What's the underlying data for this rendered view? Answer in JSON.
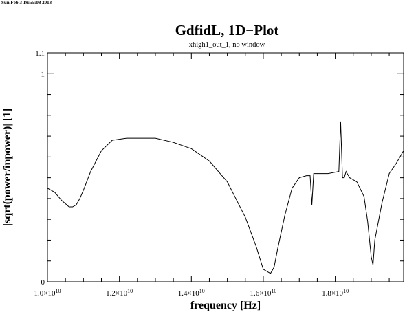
{
  "timestamp": "Sun Feb  3 19:55:08 2013",
  "chart_data": {
    "type": "line",
    "title": "GdfidL, 1D−Plot",
    "subtitle": "xhigh1_out_1, no window",
    "xlabel": "frequency [Hz]",
    "ylabel": "|sqrt(power/inpower)| [1]",
    "xlim": [
      10000000000.0,
      19900000000.0
    ],
    "ylim": [
      0,
      1.1
    ],
    "x_ticks": [
      {
        "value": 10000000000.0,
        "mantissa": "1.0",
        "exp": "10"
      },
      {
        "value": 12000000000.0,
        "mantissa": "1.2",
        "exp": "10"
      },
      {
        "value": 14000000000.0,
        "mantissa": "1.4",
        "exp": "10"
      },
      {
        "value": 16000000000.0,
        "mantissa": "1.6",
        "exp": "10"
      },
      {
        "value": 18000000000.0,
        "mantissa": "1.8",
        "exp": "10"
      }
    ],
    "y_ticks": [
      {
        "value": 0,
        "label": "0"
      },
      {
        "value": 1,
        "label": "1"
      },
      {
        "value": 1.1,
        "label": "1.1"
      }
    ],
    "x_unit": 10000000000.0,
    "x": [
      1.0,
      1.02,
      1.04,
      1.06,
      1.07,
      1.08,
      1.09,
      1.1,
      1.12,
      1.15,
      1.18,
      1.22,
      1.26,
      1.3,
      1.35,
      1.4,
      1.45,
      1.5,
      1.55,
      1.58,
      1.6,
      1.62,
      1.63,
      1.64,
      1.66,
      1.68,
      1.7,
      1.72,
      1.73,
      1.735,
      1.74,
      1.745,
      1.75,
      1.78,
      1.81,
      1.815,
      1.82,
      1.825,
      1.83,
      1.84,
      1.86,
      1.88,
      1.89,
      1.9,
      1.905,
      1.91,
      1.93,
      1.95,
      1.97,
      1.99
    ],
    "y": [
      0.45,
      0.43,
      0.39,
      0.36,
      0.36,
      0.37,
      0.4,
      0.44,
      0.53,
      0.63,
      0.68,
      0.69,
      0.69,
      0.69,
      0.67,
      0.64,
      0.58,
      0.48,
      0.31,
      0.17,
      0.06,
      0.04,
      0.07,
      0.16,
      0.32,
      0.45,
      0.5,
      0.51,
      0.51,
      0.37,
      0.52,
      0.52,
      0.52,
      0.52,
      0.53,
      0.77,
      0.5,
      0.5,
      0.53,
      0.5,
      0.48,
      0.41,
      0.29,
      0.12,
      0.08,
      0.2,
      0.38,
      0.52,
      0.57,
      0.63
    ]
  }
}
